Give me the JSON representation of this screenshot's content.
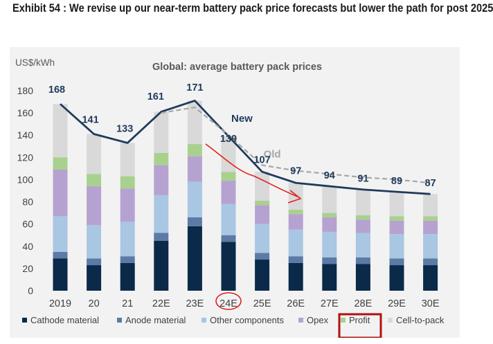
{
  "headline": "Exhibit 54 : We revise up our near-term battery pack price forecasts but lower the path for post 2025",
  "chart_data": {
    "type": "bar",
    "title": "Global: average battery pack prices",
    "ylabel": "US$/kWh",
    "xlabel": "",
    "ylim": [
      0,
      180
    ],
    "yticks": [
      0,
      20,
      40,
      60,
      80,
      100,
      120,
      140,
      160,
      180
    ],
    "grid": false,
    "legend_position": "bottom",
    "categories": [
      "2019",
      "20",
      "21",
      "22E",
      "23E",
      "24E",
      "25E",
      "26E",
      "27E",
      "28E",
      "29E",
      "30E"
    ],
    "stacked_series": [
      {
        "name": "Cathode material",
        "color": "#0b2a4a",
        "values": [
          29,
          23,
          25,
          45,
          58,
          44,
          28,
          25,
          24,
          24,
          23,
          23
        ]
      },
      {
        "name": "Anode material",
        "color": "#5b7aa5",
        "values": [
          6,
          6,
          6,
          7,
          8,
          6,
          6,
          6,
          6,
          6,
          6,
          6
        ]
      },
      {
        "name": "Other components",
        "color": "#a9c6e2",
        "values": [
          32,
          30,
          31,
          34,
          32,
          28,
          26,
          24,
          23,
          22,
          22,
          22
        ]
      },
      {
        "name": "Opex",
        "color": "#b6a2d1",
        "values": [
          42,
          35,
          30,
          27,
          23,
          21,
          17,
          14,
          13,
          12,
          12,
          12
        ]
      },
      {
        "name": "Profit",
        "color": "#a9d18e",
        "values": [
          11,
          11,
          11,
          11,
          11,
          8,
          4,
          4,
          4,
          4,
          4,
          4
        ]
      },
      {
        "name": "Cell-to-pack",
        "color": "#d9d9d9",
        "values": [
          48,
          36,
          30,
          37,
          39,
          32,
          26,
          24,
          24,
          23,
          22,
          20
        ]
      }
    ],
    "line_series": [
      {
        "name": "New",
        "color": "#1f3b5c",
        "values": [
          168,
          141,
          133,
          161,
          171,
          139,
          107,
          97,
          94,
          91,
          89,
          87
        ]
      },
      {
        "name": "Old",
        "color": "#a6a6a6",
        "dashed": true,
        "values": [
          null,
          null,
          null,
          160,
          165,
          140,
          113,
          108,
          105,
          102,
          100,
          97
        ]
      }
    ],
    "data_labels": [
      "168",
      "141",
      "133",
      "161",
      "171",
      "139",
      "107",
      "97",
      "94",
      "91",
      "89",
      "87"
    ],
    "annotations": [
      "New",
      "Old"
    ]
  }
}
